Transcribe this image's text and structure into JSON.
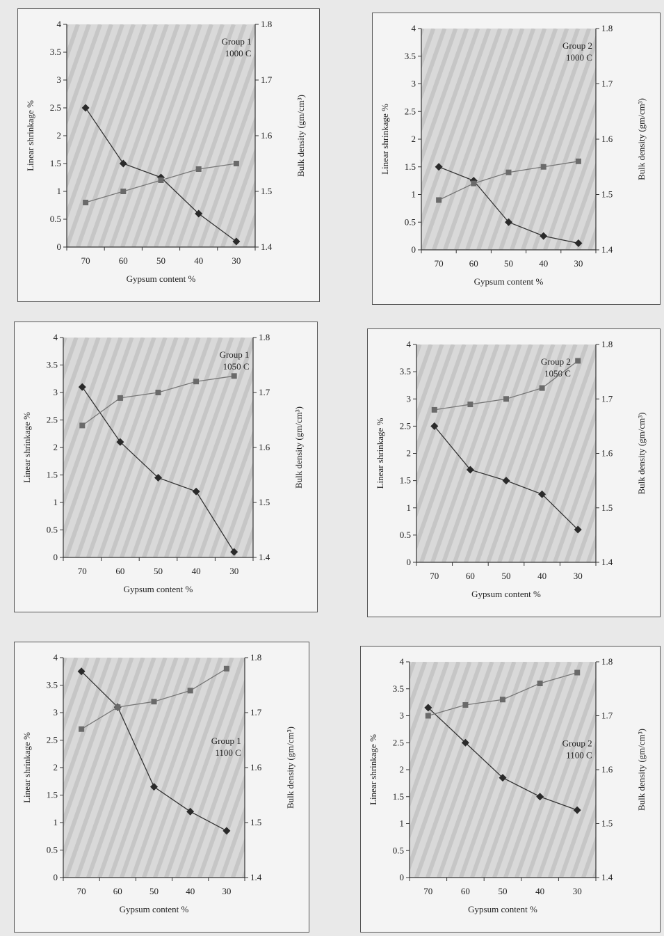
{
  "chart_data": [
    {
      "type": "line",
      "annotation": [
        "Group 1",
        "1000 C"
      ],
      "xlabel": "Gypsum content %",
      "ylabel": "Linear shrinkage %",
      "ylabel2": "Bulk density  (gm/cm³)",
      "categories": [
        "70",
        "60",
        "50",
        "40",
        "30"
      ],
      "ylim": [
        0,
        4
      ],
      "yticks": [
        "0",
        "0.5",
        "1",
        "1.5",
        "2",
        "2.5",
        "3",
        "3.5",
        "4"
      ],
      "ylim2": [
        1.4,
        1.8
      ],
      "yticks2": [
        "1.4",
        "1.5",
        "1.6",
        "1.7",
        "1.8"
      ],
      "series": [
        {
          "axis": "left",
          "marker": "diamond",
          "values": [
            2.5,
            1.5,
            1.25,
            0.6,
            0.1
          ]
        },
        {
          "axis": "right",
          "marker": "square",
          "values": [
            1.48,
            1.5,
            1.52,
            1.54,
            1.55
          ]
        }
      ]
    },
    {
      "type": "line",
      "annotation": [
        "Group 2",
        "1000 C"
      ],
      "xlabel": "Gypsum content %",
      "ylabel": "Linear shrinkage %",
      "ylabel2": "Bulk density  (gm/cm³)",
      "categories": [
        "70",
        "60",
        "50",
        "40",
        "30"
      ],
      "ylim": [
        0,
        4
      ],
      "yticks": [
        "0",
        "0.5",
        "1",
        "1.5",
        "2",
        "2.5",
        "3",
        "3.5",
        "4"
      ],
      "ylim2": [
        1.4,
        1.8
      ],
      "yticks2": [
        "1.4",
        "1.5",
        "1.6",
        "1.7",
        "1.8"
      ],
      "series": [
        {
          "axis": "left",
          "marker": "diamond",
          "values": [
            1.5,
            1.25,
            0.5,
            0.25,
            0.12
          ]
        },
        {
          "axis": "right",
          "marker": "square",
          "values": [
            1.49,
            1.52,
            1.54,
            1.55,
            1.56
          ]
        }
      ]
    },
    {
      "type": "line",
      "annotation": [
        "Group 1",
        "1050 C"
      ],
      "xlabel": "Gypsum content %",
      "ylabel": "Linear shrinkage %",
      "ylabel2": "Bulk density  (gm/cm³)",
      "categories": [
        "70",
        "60",
        "50",
        "40",
        "30"
      ],
      "ylim": [
        0,
        4
      ],
      "yticks": [
        "0",
        "0.5",
        "1",
        "1.5",
        "2",
        "2.5",
        "3",
        "3.5",
        "4"
      ],
      "ylim2": [
        1.4,
        1.8
      ],
      "yticks2": [
        "1.4",
        "1.5",
        "1.6",
        "1.7",
        "1.8"
      ],
      "series": [
        {
          "axis": "left",
          "marker": "diamond",
          "values": [
            3.1,
            2.1,
            1.45,
            1.2,
            0.1
          ]
        },
        {
          "axis": "right",
          "marker": "square",
          "values": [
            1.64,
            1.69,
            1.7,
            1.72,
            1.73
          ]
        }
      ]
    },
    {
      "type": "line",
      "annotation": [
        "Group 2",
        "1050 C"
      ],
      "xlabel": "Gypsum content %",
      "ylabel": "Linear shrinkage %",
      "ylabel2": "Bulk density  (gm/cm³)",
      "categories": [
        "70",
        "60",
        "50",
        "40",
        "30"
      ],
      "ylim": [
        0,
        4
      ],
      "yticks": [
        "0",
        "0.5",
        "1",
        "1.5",
        "2",
        "2.5",
        "3",
        "3.5",
        "4"
      ],
      "ylim2": [
        1.4,
        1.8
      ],
      "yticks2": [
        "1.4",
        "1.5",
        "1.6",
        "1.7",
        "1.8"
      ],
      "series": [
        {
          "axis": "left",
          "marker": "diamond",
          "values": [
            2.5,
            1.7,
            1.5,
            1.25,
            0.6
          ]
        },
        {
          "axis": "right",
          "marker": "square",
          "values": [
            1.68,
            1.69,
            1.7,
            1.72,
            1.77
          ]
        }
      ]
    },
    {
      "type": "line",
      "annotation": [
        "Group 1",
        "1100 C"
      ],
      "xlabel": "Gypsum content %",
      "ylabel": "Linear shrinkage %",
      "ylabel2": "Bulk density  (gm/cm³)",
      "categories": [
        "70",
        "60",
        "50",
        "40",
        "30"
      ],
      "ylim": [
        0,
        4
      ],
      "yticks": [
        "0",
        "0.5",
        "1",
        "1.5",
        "2",
        "2.5",
        "3",
        "3.5",
        "4"
      ],
      "ylim2": [
        1.4,
        1.8
      ],
      "yticks2": [
        "1.4",
        "1.5",
        "1.6",
        "1.7",
        "1.8"
      ],
      "series": [
        {
          "axis": "left",
          "marker": "diamond",
          "values": [
            3.75,
            3.1,
            1.65,
            1.2,
            0.85
          ]
        },
        {
          "axis": "right",
          "marker": "square",
          "values": [
            1.67,
            1.71,
            1.72,
            1.74,
            1.78
          ]
        }
      ]
    },
    {
      "type": "line",
      "annotation": [
        "Group 2",
        "1100 C"
      ],
      "xlabel": "Gypsum content %",
      "ylabel": "Linear shrinkage %",
      "ylabel2": "Bulk density  (gm/cm³)",
      "categories": [
        "70",
        "60",
        "50",
        "40",
        "30"
      ],
      "ylim": [
        0,
        4
      ],
      "yticks": [
        "0",
        "0.5",
        "1",
        "1.5",
        "2",
        "2.5",
        "3",
        "3.5",
        "4"
      ],
      "ylim2": [
        1.4,
        1.8
      ],
      "yticks2": [
        "1.4",
        "1.5",
        "1.6",
        "1.7",
        "1.8"
      ],
      "series": [
        {
          "axis": "left",
          "marker": "diamond",
          "values": [
            3.15,
            2.5,
            1.85,
            1.5,
            1.25
          ]
        },
        {
          "axis": "right",
          "marker": "square",
          "values": [
            1.7,
            1.72,
            1.73,
            1.76,
            1.78
          ]
        }
      ]
    }
  ]
}
